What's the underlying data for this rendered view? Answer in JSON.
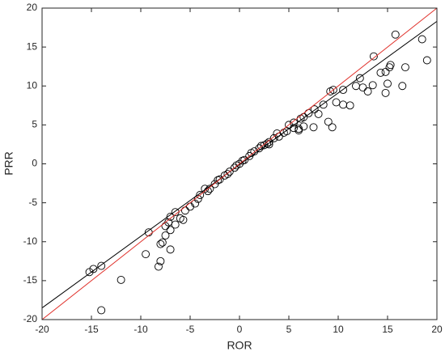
{
  "chart_data": {
    "type": "scatter",
    "x_label": "ROR",
    "y_label": "PRR",
    "xlim": [
      -20,
      20
    ],
    "ylim": [
      -20,
      20
    ],
    "xticks": [
      -20,
      -15,
      -10,
      -5,
      0,
      5,
      10,
      15,
      20
    ],
    "yticks": [
      -20,
      -15,
      -10,
      -5,
      0,
      5,
      10,
      15,
      20
    ],
    "series": [
      {
        "type": "scatter",
        "color": "#000000",
        "x": [
          15.8,
          18.5,
          19.0,
          13.6,
          16.8,
          15.3,
          15.2,
          12.2,
          14.3,
          14.8,
          11.8,
          12.5,
          13.5,
          15.0,
          16.5,
          13.0,
          14.8,
          9.5,
          10.5,
          9.2,
          10.5,
          11.2,
          8.5,
          9.8,
          9.0,
          9.4,
          8.0,
          7.5,
          6.5,
          6.5,
          6.0,
          5.5,
          5.0,
          4.5,
          4.0,
          3.5,
          3.0,
          2.5,
          2.0,
          1.5,
          1.0,
          0.5,
          0,
          -0.5,
          -1,
          -1.5,
          -2,
          -2.5,
          -3,
          -3.5,
          -4,
          -4.2,
          -4.5,
          -5,
          -5.5,
          -5.7,
          -6,
          -6.5,
          -6.5,
          -7,
          -7,
          -7.2,
          -7.5,
          -7.5,
          -8,
          -8,
          -8.2,
          -7.8,
          -7,
          -9.2,
          -9.5,
          -12,
          -14,
          -14.8,
          -15.2,
          -14,
          1.2,
          2.2,
          2.8,
          -1.2,
          -2.2,
          -3.2,
          0.3,
          -0.3,
          3.8,
          4.8,
          5.5,
          6.2,
          7.0,
          7.6,
          6.0,
          3.0
        ],
        "values": [
          16.6,
          16.0,
          13.3,
          13.8,
          12.4,
          12.7,
          12.4,
          11.0,
          11.7,
          11.8,
          10.0,
          9.8,
          10.1,
          10.3,
          10.0,
          9.3,
          9.1,
          9.5,
          9.5,
          9.3,
          7.6,
          7.5,
          7.6,
          7.9,
          5.4,
          4.7,
          6.4,
          4.7,
          4.8,
          6.0,
          4.5,
          4.6,
          5.0,
          4.0,
          3.5,
          3.3,
          2.8,
          2.4,
          2.0,
          1.6,
          1.0,
          0.5,
          0,
          -0.5,
          -1,
          -1.5,
          -2,
          -2.6,
          -3.2,
          -3.2,
          -4,
          -4.5,
          -5.1,
          -5.5,
          -6.0,
          -7.2,
          -7.0,
          -6.2,
          -7.8,
          -6.8,
          -8.5,
          -7.5,
          -8.0,
          -9.2,
          -10.3,
          -12.5,
          -13.2,
          -10.1,
          -11.0,
          -8.8,
          -11.6,
          -14.9,
          -13.1,
          -13.5,
          -13.9,
          -18.8,
          1.4,
          2.3,
          2.6,
          -1.3,
          -2.1,
          -3.5,
          0.4,
          -0.2,
          3.9,
          4.2,
          5.3,
          5.8,
          6.5,
          7.0,
          4.3,
          2.5
        ]
      },
      {
        "type": "line",
        "color": "#000000",
        "x": [
          -20,
          20
        ],
        "values": [
          -18.5,
          18.3
        ]
      },
      {
        "type": "line",
        "color": "#e0302a",
        "x": [
          -20,
          20
        ],
        "values": [
          -20,
          20
        ]
      }
    ]
  }
}
